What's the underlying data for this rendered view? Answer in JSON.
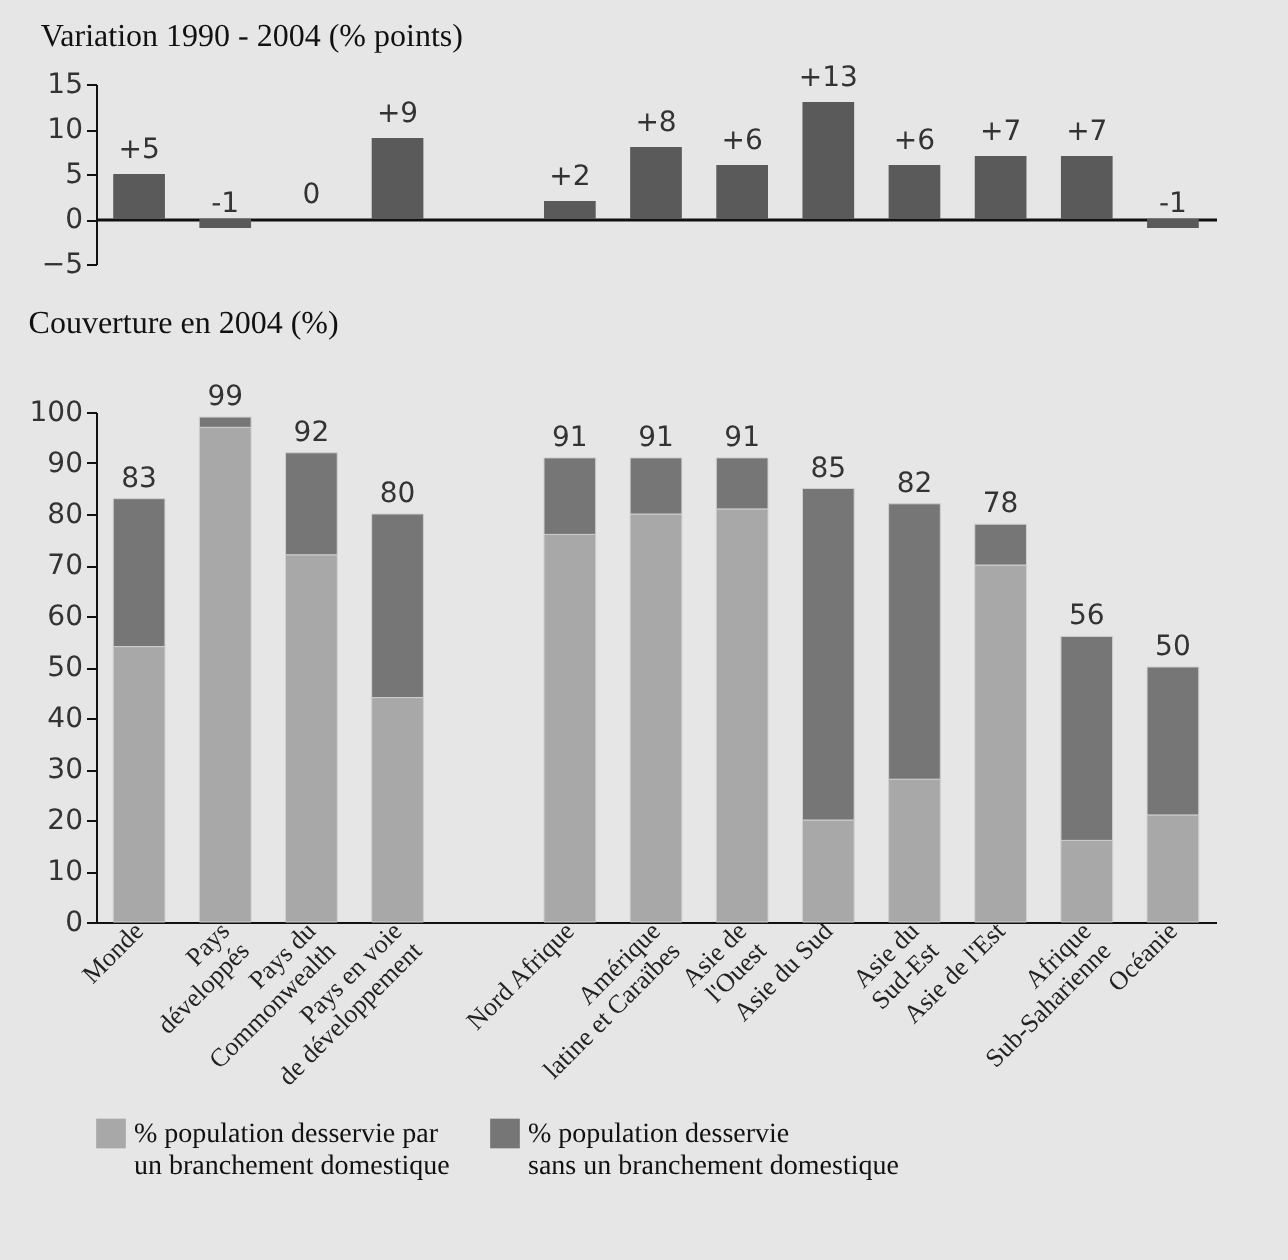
{
  "chart_data": [
    {
      "type": "bar",
      "title": "Variation 1990 - 2004 (% points)",
      "categories": [
        null,
        null,
        null,
        null,
        null,
        null,
        null,
        null,
        null,
        null,
        null,
        null,
        null
      ],
      "values": [
        5,
        -1,
        0,
        9,
        null,
        2,
        8,
        6,
        13,
        6,
        7,
        7,
        -1
      ],
      "value_labels": [
        "+5",
        "-1",
        "0",
        "+9",
        null,
        "+2",
        "+8",
        "+6",
        "+13",
        "+6",
        "+7",
        "+7",
        "-1"
      ],
      "color": "#5a5a5a",
      "ylim": [
        -5,
        15
      ],
      "yticks": [
        -5,
        0,
        5,
        10,
        15
      ],
      "tick_labels": "y"
    },
    {
      "type": "bar",
      "stacked": true,
      "title": "Couverture en 2004 (%)",
      "categories": [
        "Monde",
        "Pays développés",
        "Pays du Commonwealth",
        "Pays en voie de développement",
        null,
        "Nord Afrique",
        "Amérique latine et Caraïbes",
        "Asie de l'Ouest",
        "Asie du Sud",
        "Asie du Sud-Est",
        "Asie de l'Est",
        "Afrique Sub-Saharienne",
        "Océanie"
      ],
      "series": [
        {
          "name": "% population desservie par un branchement domestique",
          "color": "#a8a8a8",
          "values": [
            54,
            97,
            72,
            44,
            null,
            76,
            80,
            81,
            20,
            28,
            70,
            16,
            21
          ]
        },
        {
          "name": "% population desservie sans un branchement domestique",
          "color": "#767676",
          "values": [
            29,
            2,
            20,
            36,
            null,
            15,
            11,
            10,
            65,
            54,
            8,
            40,
            29
          ]
        }
      ],
      "totals": [
        "83",
        "99",
        "92",
        "80",
        null,
        "91",
        "91",
        "91",
        "85",
        "82",
        "78",
        "56",
        "50"
      ],
      "ylim": [
        0,
        100
      ],
      "yticks": [
        0,
        10,
        20,
        30,
        40,
        50,
        60,
        70,
        80,
        90,
        100
      ],
      "legend": "bottom"
    }
  ]
}
